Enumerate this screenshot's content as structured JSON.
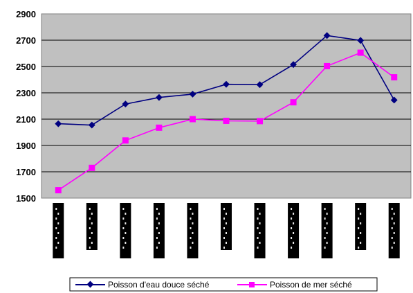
{
  "chart_data": {
    "type": "line",
    "title": "",
    "xlabel": "",
    "ylabel": "",
    "ylim": [
      1500,
      2900
    ],
    "yticks": [
      1500,
      1700,
      1900,
      2100,
      2300,
      2500,
      2700,
      2900
    ],
    "grid": true,
    "legend_position": "bottom",
    "plot_background": "#c0c0c0",
    "categories": [
      "",
      "",
      "",
      "",
      "",
      "",
      "",
      "",
      "",
      "",
      ""
    ],
    "series": [
      {
        "name": "Poisson d'eau douce séché",
        "color": "#000080",
        "marker": "diamond",
        "values": [
          2065,
          2055,
          2215,
          2265,
          2290,
          2365,
          2362,
          2515,
          2735,
          2698,
          2245
        ]
      },
      {
        "name": "Poisson  de  mer séché",
        "color": "#ff00ff",
        "marker": "square",
        "values": [
          1560,
          1730,
          1938,
          2035,
          2100,
          2087,
          2085,
          2228,
          2503,
          2605,
          2418
        ]
      }
    ]
  }
}
